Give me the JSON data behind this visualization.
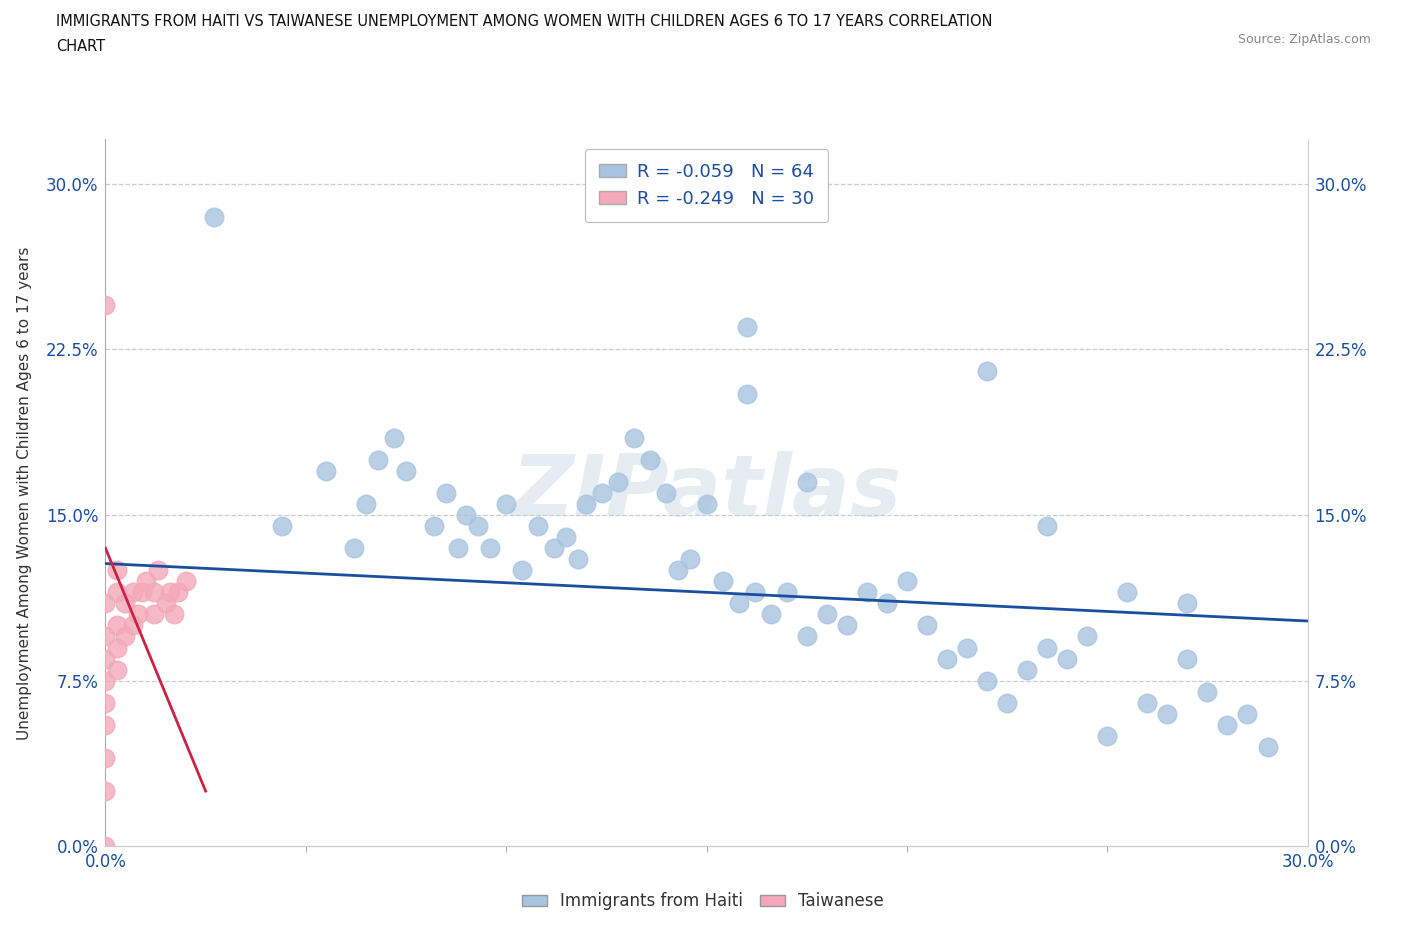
{
  "title_line1": "IMMIGRANTS FROM HAITI VS TAIWANESE UNEMPLOYMENT AMONG WOMEN WITH CHILDREN AGES 6 TO 17 YEARS CORRELATION",
  "title_line2": "CHART",
  "source_text": "Source: ZipAtlas.com",
  "ylabel": "Unemployment Among Women with Children Ages 6 to 17 years",
  "legend_label_haiti": "Immigrants from Haiti",
  "legend_label_taiwan": "Taiwanese",
  "xmin": 0.0,
  "xmax": 0.3,
  "ymin": 0.0,
  "ymax": 0.32,
  "yticks": [
    0.0,
    0.075,
    0.15,
    0.225,
    0.3
  ],
  "ytick_labels": [
    "0.0%",
    "7.5%",
    "15.0%",
    "22.5%",
    "30.0%"
  ],
  "xtick_left_label": "0.0%",
  "xtick_right_label": "30.0%",
  "r_haiti": "-0.059",
  "n_haiti": "64",
  "r_taiwan": "-0.249",
  "n_taiwan": "30",
  "haiti_color": "#a8c4e0",
  "taiwan_color": "#f4a8b8",
  "haiti_line_color": "#1a4fa0",
  "taiwan_line_color": "#cc2244",
  "watermark_text": "ZIPatlas",
  "haiti_scatter_x": [
    0.027,
    0.062,
    0.065,
    0.068,
    0.072,
    0.075,
    0.082,
    0.085,
    0.088,
    0.09,
    0.093,
    0.096,
    0.1,
    0.104,
    0.108,
    0.112,
    0.115,
    0.118,
    0.12,
    0.124,
    0.128,
    0.132,
    0.136,
    0.14,
    0.143,
    0.146,
    0.15,
    0.154,
    0.158,
    0.162,
    0.166,
    0.17,
    0.175,
    0.18,
    0.185,
    0.19,
    0.195,
    0.2,
    0.205,
    0.21,
    0.215,
    0.22,
    0.225,
    0.23,
    0.235,
    0.24,
    0.245,
    0.25,
    0.255,
    0.26,
    0.265,
    0.27,
    0.275,
    0.28,
    0.285,
    0.29,
    0.044,
    0.055,
    0.16,
    0.175,
    0.22,
    0.235,
    0.16,
    0.27
  ],
  "haiti_scatter_y": [
    0.285,
    0.135,
    0.155,
    0.175,
    0.185,
    0.17,
    0.145,
    0.16,
    0.135,
    0.15,
    0.145,
    0.135,
    0.155,
    0.125,
    0.145,
    0.135,
    0.14,
    0.13,
    0.155,
    0.16,
    0.165,
    0.185,
    0.175,
    0.16,
    0.125,
    0.13,
    0.155,
    0.12,
    0.11,
    0.115,
    0.105,
    0.115,
    0.095,
    0.105,
    0.1,
    0.115,
    0.11,
    0.12,
    0.1,
    0.085,
    0.09,
    0.075,
    0.065,
    0.08,
    0.09,
    0.085,
    0.095,
    0.05,
    0.115,
    0.065,
    0.06,
    0.085,
    0.07,
    0.055,
    0.06,
    0.045,
    0.145,
    0.17,
    0.205,
    0.165,
    0.215,
    0.145,
    0.235,
    0.11
  ],
  "taiwan_scatter_x": [
    0.0,
    0.0,
    0.0,
    0.0,
    0.0,
    0.0,
    0.0,
    0.0,
    0.0,
    0.0,
    0.003,
    0.003,
    0.003,
    0.003,
    0.003,
    0.005,
    0.005,
    0.007,
    0.007,
    0.008,
    0.009,
    0.01,
    0.012,
    0.012,
    0.013,
    0.015,
    0.016,
    0.017,
    0.018,
    0.02
  ],
  "taiwan_scatter_y": [
    0.0,
    0.025,
    0.04,
    0.055,
    0.065,
    0.075,
    0.085,
    0.095,
    0.11,
    0.245,
    0.08,
    0.09,
    0.1,
    0.115,
    0.125,
    0.095,
    0.11,
    0.1,
    0.115,
    0.105,
    0.115,
    0.12,
    0.105,
    0.115,
    0.125,
    0.11,
    0.115,
    0.105,
    0.115,
    0.12
  ],
  "haiti_line_x0": 0.0,
  "haiti_line_x1": 0.3,
  "haiti_line_y0": 0.128,
  "haiti_line_y1": 0.102,
  "taiwan_line_x0": 0.0,
  "taiwan_line_x1": 0.025,
  "taiwan_line_y0": 0.135,
  "taiwan_line_y1": 0.025
}
